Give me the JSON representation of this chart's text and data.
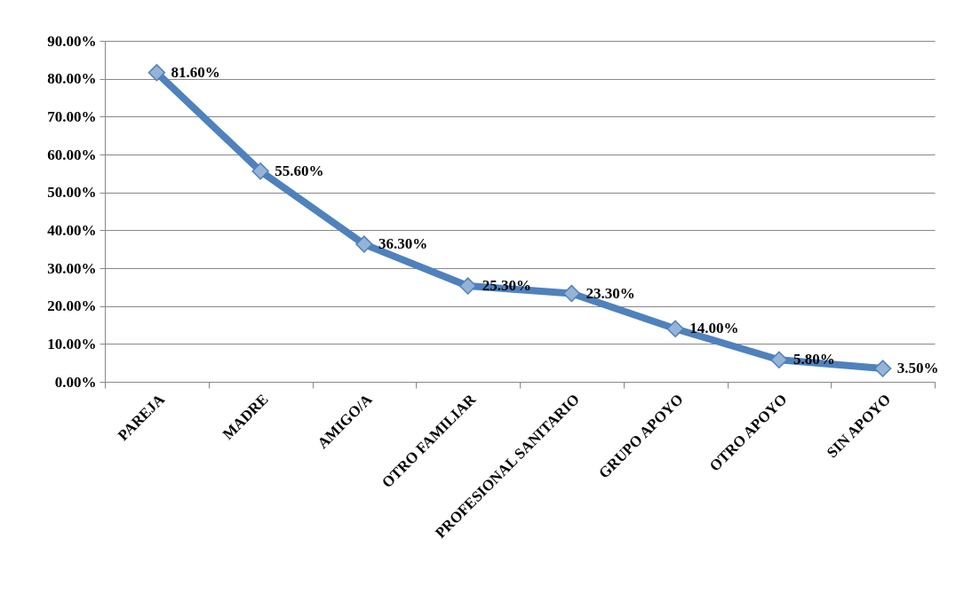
{
  "chart_data": {
    "type": "line",
    "categories": [
      "PAREJA",
      "MADRE",
      "AMIGO/A",
      "OTRO FAMILIAR",
      "PROFESIONAL SANITARIO",
      "GRUPO APOYO",
      "OTRO APOYO",
      "SIN APOYO"
    ],
    "series": [
      {
        "color": "#4f81bd",
        "values": [
          81.6,
          55.6,
          36.3,
          25.3,
          23.3,
          14.0,
          5.8,
          3.5
        ],
        "value_labels": [
          "81.60%",
          "55.60%",
          "36.30%",
          "25.30%",
          "23.30%",
          "14.00%",
          "5.80%",
          "3.50%"
        ]
      }
    ],
    "ylim": [
      0,
      90
    ],
    "yticks": [
      {
        "value": 0,
        "label": "0.00%"
      },
      {
        "value": 10,
        "label": "10.00%"
      },
      {
        "value": 20,
        "label": "20.00%"
      },
      {
        "value": 30,
        "label": "30.00%"
      },
      {
        "value": 40,
        "label": "40.00%"
      },
      {
        "value": 50,
        "label": "50.00%"
      },
      {
        "value": 60,
        "label": "60.00%"
      },
      {
        "value": 70,
        "label": "70.00%"
      },
      {
        "value": 80,
        "label": "80.00%"
      },
      {
        "value": 90,
        "label": "90.00%"
      }
    ],
    "grid": "y",
    "marker": "diamond",
    "line_style": "solid"
  }
}
